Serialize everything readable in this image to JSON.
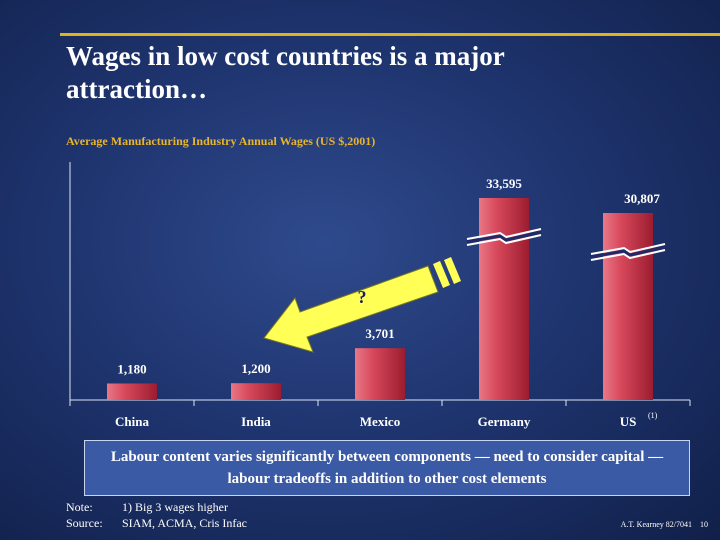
{
  "title": "Wages in low cost countries is a major\nattraction…",
  "chart_data": {
    "type": "bar",
    "title": "Average Manufacturing Industry Annual Wages (US $,2001)",
    "categories": [
      "China",
      "India",
      "Mexico",
      "Germany",
      "US"
    ],
    "category_superscripts": [
      "",
      "",
      "",
      "",
      "(1)"
    ],
    "values": [
      1180,
      1200,
      3701,
      33595,
      30807
    ],
    "value_labels": [
      "1,180",
      "1,200",
      "3,701",
      "33,595",
      "30,807"
    ],
    "axis_break": true,
    "broken_bars": [
      "Germany",
      "US"
    ],
    "bar_color": "#c9334a",
    "annotation": "?",
    "arrow_color": "#ffff55",
    "grid": false,
    "legend": "none"
  },
  "callout": "Labour content varies significantly between components — need to consider capital — labour tradeoffs in addition to other cost elements",
  "notes": [
    {
      "label": "Note:",
      "text": "1) Big 3 wages higher"
    },
    {
      "label": "Source:",
      "text": "SIAM, ACMA, Cris Infac"
    }
  ],
  "footer": {
    "left": "A.T. Kearney 82/7041",
    "page": "10"
  },
  "colors": {
    "title_rule": "#e1b31b",
    "subtitle": "#e8b52a",
    "background": "#1f3570",
    "callout_bg": "#3a5aa6"
  }
}
